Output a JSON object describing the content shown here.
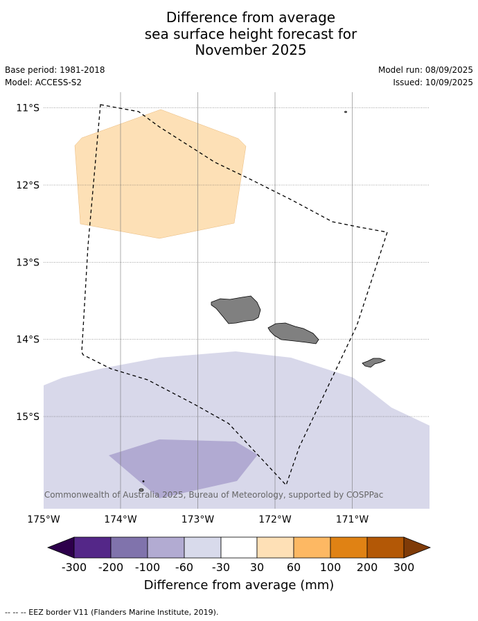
{
  "header": {
    "title_line1": "Difference from average",
    "title_line2": "sea surface height forecast for",
    "title_line3": "November 2025",
    "base_period": "Base period: 1981-2018",
    "model": "Model: ACCESS-S2",
    "model_run": "Model run: 08/09/2025",
    "issued": "Issued: 10/09/2025"
  },
  "map": {
    "lat_labels": [
      "11°S",
      "12°S",
      "13°S",
      "14°S",
      "15°S"
    ],
    "lon_labels": [
      "175°W",
      "174°W",
      "173°W",
      "172°W",
      "171°W"
    ],
    "credit": "© Commonwealth of Australia 2025, Bureau of Meteorology, supported by COSPPac",
    "colors": {
      "band_30_60": "#fde0b6",
      "band_m60_m30": "#d8d8ea",
      "band_m100_m60": "#b1aad2",
      "land": "#808080",
      "eez": "#000000"
    }
  },
  "colorbar": {
    "labels": [
      "-300",
      "-200",
      "-100",
      "-60",
      "-30",
      "30",
      "60",
      "100",
      "200",
      "300"
    ],
    "colors": [
      "#2d004b",
      "#542788",
      "#8073ac",
      "#b2abd2",
      "#d8daeb",
      "#ffffff",
      "#fee0b6",
      "#fdb863",
      "#e08214",
      "#b35806",
      "#7f3b08"
    ],
    "title": "Difference from average (mm)"
  },
  "footnote": "-- -- -- EEZ border V11 (Flanders Marine Institute, 2019)."
}
